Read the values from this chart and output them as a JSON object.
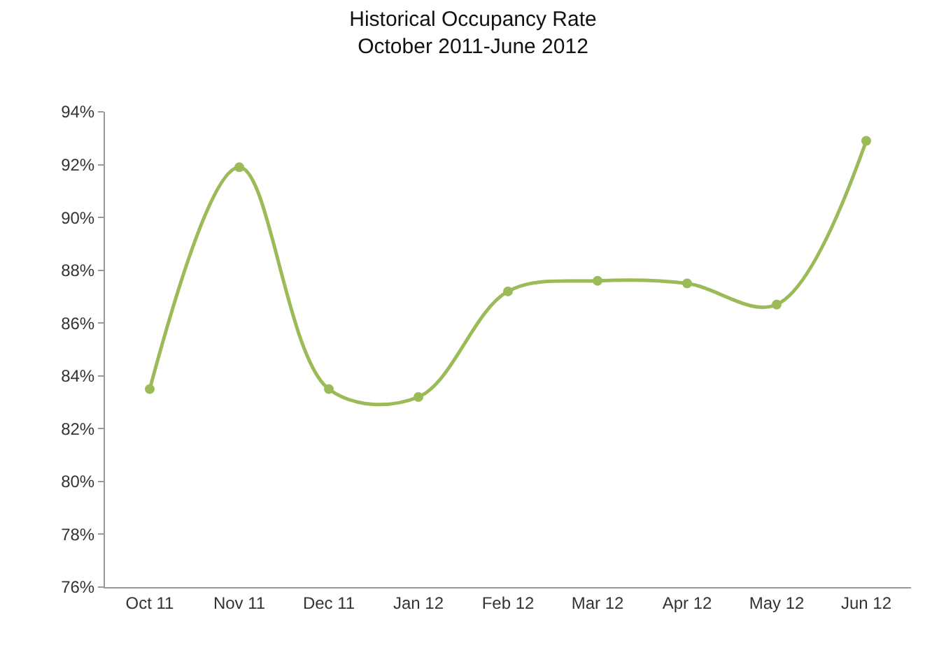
{
  "chart_data": {
    "type": "line",
    "title": "Historical Occupancy Rate\nOctober 2011-June 2012",
    "categories": [
      "Oct 11",
      "Nov 11",
      "Dec 11",
      "Jan 12",
      "Feb 12",
      "Mar 12",
      "Apr 12",
      "May 12",
      "Jun 12"
    ],
    "series": [
      {
        "color": "#9bbb59",
        "values": [
          83.5,
          91.9,
          83.5,
          83.2,
          87.2,
          87.6,
          87.5,
          86.7,
          92.9
        ]
      }
    ],
    "ylim": [
      76,
      94
    ],
    "yticks": [
      {
        "value": 76,
        "label": "76%"
      },
      {
        "value": 78,
        "label": "78%"
      },
      {
        "value": 80,
        "label": "80%"
      },
      {
        "value": 82,
        "label": "82%"
      },
      {
        "value": 84,
        "label": "84%"
      },
      {
        "value": 86,
        "label": "86%"
      },
      {
        "value": 88,
        "label": "88%"
      },
      {
        "value": 90,
        "label": "90%"
      },
      {
        "value": 92,
        "label": "92%"
      },
      {
        "value": 94,
        "label": "94%"
      }
    ],
    "marker": "circle",
    "legend": false
  }
}
